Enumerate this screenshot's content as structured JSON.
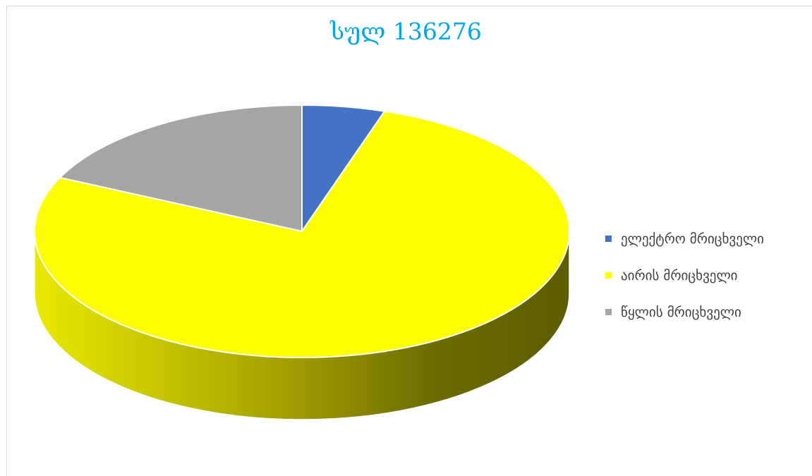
{
  "chart_data": {
    "type": "pie",
    "title": "სულ 136276",
    "three_d": true,
    "legend_position": "right",
    "categories": [
      "ელექტრო მრიცხველი",
      "აირის მრიცხველი",
      "წყლის მრიცხველი"
    ],
    "values": [
      5,
      77,
      18
    ],
    "colors": [
      "#4472c4",
      "#ffff00",
      "#a5a5a5"
    ]
  }
}
